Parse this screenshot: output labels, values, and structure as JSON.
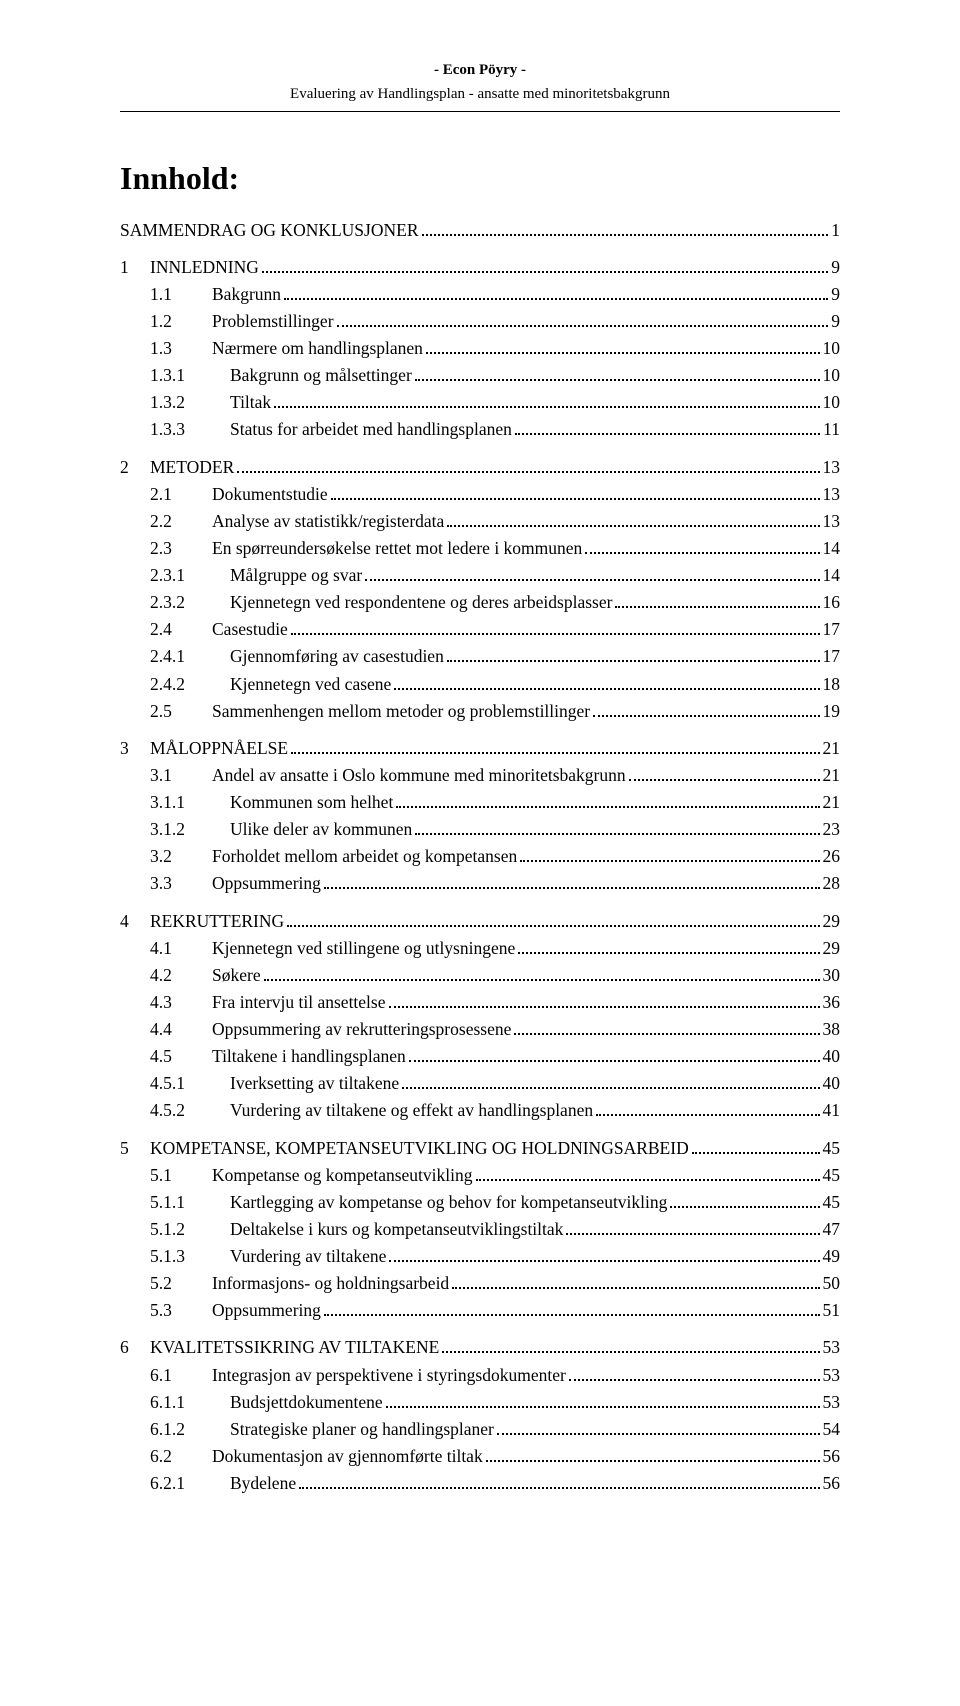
{
  "header": {
    "line1": "- Econ Pöyry -",
    "line2": "Evaluering av Handlingsplan - ansatte med minoritetsbakgrunn"
  },
  "title": "Innhold:",
  "toc": [
    {
      "level": 0,
      "num": "",
      "label": "SAMMENDRAG OG KONKLUSJONER",
      "page": "1",
      "gapAfter": true
    },
    {
      "level": 1,
      "num": "1",
      "label": "INNLEDNING",
      "page": "9"
    },
    {
      "level": 2,
      "num": "1.1",
      "label": "Bakgrunn",
      "page": "9"
    },
    {
      "level": 2,
      "num": "1.2",
      "label": "Problemstillinger",
      "page": "9"
    },
    {
      "level": 2,
      "num": "1.3",
      "label": "Nærmere om handlingsplanen",
      "page": "10"
    },
    {
      "level": 3,
      "num": "1.3.1",
      "label": "Bakgrunn og målsettinger",
      "page": "10"
    },
    {
      "level": 3,
      "num": "1.3.2",
      "label": "Tiltak",
      "page": "10"
    },
    {
      "level": 3,
      "num": "1.3.3",
      "label": "Status for arbeidet med handlingsplanen",
      "page": "11",
      "gapAfter": true
    },
    {
      "level": 1,
      "num": "2",
      "label": "METODER",
      "page": "13"
    },
    {
      "level": 2,
      "num": "2.1",
      "label": "Dokumentstudie",
      "page": "13"
    },
    {
      "level": 2,
      "num": "2.2",
      "label": "Analyse av statistikk/registerdata",
      "page": "13"
    },
    {
      "level": 2,
      "num": "2.3",
      "label": "En spørreundersøkelse rettet mot ledere i kommunen",
      "page": "14"
    },
    {
      "level": 3,
      "num": "2.3.1",
      "label": "Målgruppe og svar",
      "page": "14"
    },
    {
      "level": 3,
      "num": "2.3.2",
      "label": "Kjennetegn ved respondentene og deres arbeidsplasser",
      "page": "16"
    },
    {
      "level": 2,
      "num": "2.4",
      "label": "Casestudie",
      "page": "17"
    },
    {
      "level": 3,
      "num": "2.4.1",
      "label": "Gjennomføring av casestudien",
      "page": "17"
    },
    {
      "level": 3,
      "num": "2.4.2",
      "label": "Kjennetegn ved casene",
      "page": "18"
    },
    {
      "level": 2,
      "num": "2.5",
      "label": "Sammenhengen mellom metoder og problemstillinger",
      "page": "19",
      "gapAfter": true
    },
    {
      "level": 1,
      "num": "3",
      "label": "MÅLOPPNÅELSE",
      "page": "21"
    },
    {
      "level": 2,
      "num": "3.1",
      "label": "Andel av ansatte i Oslo kommune med minoritetsbakgrunn",
      "page": "21"
    },
    {
      "level": 3,
      "num": "3.1.1",
      "label": "Kommunen som helhet",
      "page": "21"
    },
    {
      "level": 3,
      "num": "3.1.2",
      "label": "Ulike deler av kommunen",
      "page": "23"
    },
    {
      "level": 2,
      "num": "3.2",
      "label": "Forholdet mellom arbeidet og kompetansen",
      "page": "26"
    },
    {
      "level": 2,
      "num": "3.3",
      "label": "Oppsummering",
      "page": "28",
      "gapAfter": true
    },
    {
      "level": 1,
      "num": "4",
      "label": "REKRUTTERING",
      "page": "29"
    },
    {
      "level": 2,
      "num": "4.1",
      "label": "Kjennetegn ved stillingene og utlysningene",
      "page": "29"
    },
    {
      "level": 2,
      "num": "4.2",
      "label": "Søkere",
      "page": "30"
    },
    {
      "level": 2,
      "num": "4.3",
      "label": "Fra intervju til ansettelse",
      "page": "36"
    },
    {
      "level": 2,
      "num": "4.4",
      "label": "Oppsummering av rekrutteringsprosessene",
      "page": "38"
    },
    {
      "level": 2,
      "num": "4.5",
      "label": "Tiltakene i handlingsplanen",
      "page": "40"
    },
    {
      "level": 3,
      "num": "4.5.1",
      "label": "Iverksetting av tiltakene",
      "page": "40"
    },
    {
      "level": 3,
      "num": "4.5.2",
      "label": "Vurdering av tiltakene og effekt av handlingsplanen",
      "page": "41",
      "gapAfter": true
    },
    {
      "level": 1,
      "num": "5",
      "label": "KOMPETANSE, KOMPETANSEUTVIKLING OG HOLDNINGSARBEID",
      "page": "45"
    },
    {
      "level": 2,
      "num": "5.1",
      "label": "Kompetanse og kompetanseutvikling",
      "page": "45"
    },
    {
      "level": 3,
      "num": "5.1.1",
      "label": "Kartlegging av kompetanse og behov for kompetanseutvikling",
      "page": "45"
    },
    {
      "level": 3,
      "num": "5.1.2",
      "label": "Deltakelse i kurs og kompetanseutviklingstiltak",
      "page": "47"
    },
    {
      "level": 3,
      "num": "5.1.3",
      "label": "Vurdering av tiltakene",
      "page": "49"
    },
    {
      "level": 2,
      "num": "5.2",
      "label": "Informasjons- og holdningsarbeid",
      "page": "50"
    },
    {
      "level": 2,
      "num": "5.3",
      "label": "Oppsummering",
      "page": "51",
      "gapAfter": true
    },
    {
      "level": 1,
      "num": "6",
      "label": "KVALITETSSIKRING AV TILTAKENE",
      "page": "53"
    },
    {
      "level": 2,
      "num": "6.1",
      "label": "Integrasjon av perspektivene i styringsdokumenter",
      "page": "53"
    },
    {
      "level": 3,
      "num": "6.1.1",
      "label": "Budsjettdokumentene",
      "page": "53"
    },
    {
      "level": 3,
      "num": "6.1.2",
      "label": "Strategiske planer og handlingsplaner",
      "page": "54"
    },
    {
      "level": 2,
      "num": "6.2",
      "label": "Dokumentasjon av gjennomførte tiltak",
      "page": "56"
    },
    {
      "level": 3,
      "num": "6.2.1",
      "label": "Bydelene",
      "page": "56"
    }
  ]
}
